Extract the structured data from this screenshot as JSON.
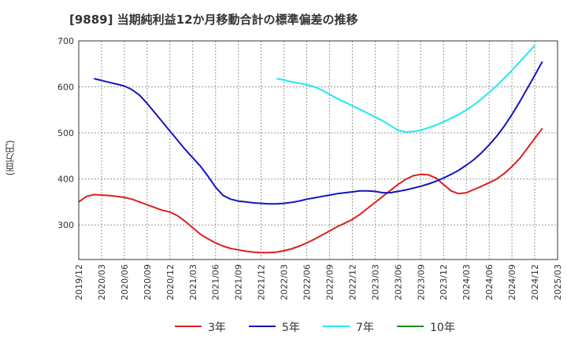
{
  "title": "[9889]  当期純利益12か月移動合計の標準偏差の推移",
  "unit_label": "(百万円)",
  "legend": [
    {
      "label": "3年",
      "color": "#dd1f1f"
    },
    {
      "label": "5年",
      "color": "#1414c0"
    },
    {
      "label": "7年",
      "color": "#20e8f0"
    },
    {
      "label": "10年",
      "color": "#1a8f1a"
    }
  ],
  "chart_data": {
    "type": "line",
    "title": "[9889]  当期純利益12か月移動合計の標準偏差の推移",
    "xlabel": "",
    "ylabel": "(百万円)",
    "ylim": [
      225,
      700
    ],
    "yticks": [
      300,
      400,
      500,
      600,
      700
    ],
    "x_range": [
      "2019-12",
      "2025-03"
    ],
    "xtick_labels": [
      "2019/12",
      "2020/03",
      "2020/06",
      "2020/09",
      "2020/12",
      "2021/03",
      "2021/06",
      "2021/09",
      "2021/12",
      "2022/03",
      "2022/06",
      "2022/09",
      "2022/12",
      "2023/03",
      "2023/06",
      "2023/09",
      "2023/12",
      "2024/03",
      "2024/06",
      "2024/09",
      "2024/12",
      "2025/03"
    ],
    "grid": true,
    "series": [
      {
        "name": "3年",
        "color": "#dd1f1f",
        "points": [
          [
            "2019-12",
            350
          ],
          [
            "2020-01",
            362
          ],
          [
            "2020-02",
            366
          ],
          [
            "2020-03",
            365
          ],
          [
            "2020-04",
            364
          ],
          [
            "2020-05",
            362
          ],
          [
            "2020-06",
            360
          ],
          [
            "2020-07",
            356
          ],
          [
            "2020-08",
            350
          ],
          [
            "2020-09",
            344
          ],
          [
            "2020-10",
            338
          ],
          [
            "2020-11",
            332
          ],
          [
            "2020-12",
            328
          ],
          [
            "2021-01",
            320
          ],
          [
            "2021-02",
            308
          ],
          [
            "2021-03",
            294
          ],
          [
            "2021-04",
            280
          ],
          [
            "2021-05",
            270
          ],
          [
            "2021-06",
            261
          ],
          [
            "2021-07",
            254
          ],
          [
            "2021-08",
            249
          ],
          [
            "2021-09",
            246
          ],
          [
            "2021-10",
            243
          ],
          [
            "2021-11",
            241
          ],
          [
            "2021-12",
            240
          ],
          [
            "2022-01",
            240
          ],
          [
            "2022-02",
            241
          ],
          [
            "2022-03",
            244
          ],
          [
            "2022-04",
            248
          ],
          [
            "2022-05",
            254
          ],
          [
            "2022-06",
            261
          ],
          [
            "2022-07",
            269
          ],
          [
            "2022-08",
            278
          ],
          [
            "2022-09",
            287
          ],
          [
            "2022-10",
            296
          ],
          [
            "2022-11",
            304
          ],
          [
            "2022-12",
            312
          ],
          [
            "2023-01",
            323
          ],
          [
            "2023-02",
            336
          ],
          [
            "2023-03",
            349
          ],
          [
            "2023-04",
            362
          ],
          [
            "2023-05",
            375
          ],
          [
            "2023-06",
            388
          ],
          [
            "2023-07",
            399
          ],
          [
            "2023-08",
            407
          ],
          [
            "2023-09",
            410
          ],
          [
            "2023-10",
            409
          ],
          [
            "2023-11",
            402
          ],
          [
            "2023-12",
            388
          ],
          [
            "2024-01",
            374
          ],
          [
            "2024-02",
            368
          ],
          [
            "2024-03",
            370
          ],
          [
            "2024-04",
            377
          ],
          [
            "2024-05",
            384
          ],
          [
            "2024-06",
            392
          ],
          [
            "2024-07",
            400
          ],
          [
            "2024-08",
            412
          ],
          [
            "2024-09",
            427
          ],
          [
            "2024-10",
            444
          ],
          [
            "2024-11",
            466
          ],
          [
            "2024-12",
            488
          ],
          [
            "2025-01",
            510
          ]
        ]
      },
      {
        "name": "5年",
        "color": "#1414c0",
        "points": [
          [
            "2020-02",
            618
          ],
          [
            "2020-03",
            614
          ],
          [
            "2020-04",
            610
          ],
          [
            "2020-05",
            606
          ],
          [
            "2020-06",
            602
          ],
          [
            "2020-07",
            594
          ],
          [
            "2020-08",
            582
          ],
          [
            "2020-09",
            564
          ],
          [
            "2020-10",
            544
          ],
          [
            "2020-11",
            524
          ],
          [
            "2020-12",
            504
          ],
          [
            "2021-01",
            484
          ],
          [
            "2021-02",
            464
          ],
          [
            "2021-03",
            446
          ],
          [
            "2021-04",
            428
          ],
          [
            "2021-05",
            406
          ],
          [
            "2021-06",
            382
          ],
          [
            "2021-07",
            364
          ],
          [
            "2021-08",
            356
          ],
          [
            "2021-09",
            352
          ],
          [
            "2021-10",
            350
          ],
          [
            "2021-11",
            348
          ],
          [
            "2021-12",
            347
          ],
          [
            "2022-01",
            346
          ],
          [
            "2022-02",
            346
          ],
          [
            "2022-03",
            347
          ],
          [
            "2022-04",
            349
          ],
          [
            "2022-05",
            352
          ],
          [
            "2022-06",
            356
          ],
          [
            "2022-07",
            359
          ],
          [
            "2022-08",
            362
          ],
          [
            "2022-09",
            365
          ],
          [
            "2022-10",
            368
          ],
          [
            "2022-11",
            370
          ],
          [
            "2022-12",
            372
          ],
          [
            "2023-01",
            374
          ],
          [
            "2023-02",
            374
          ],
          [
            "2023-03",
            373
          ],
          [
            "2023-04",
            370
          ],
          [
            "2023-05",
            370
          ],
          [
            "2023-06",
            373
          ],
          [
            "2023-07",
            376
          ],
          [
            "2023-08",
            380
          ],
          [
            "2023-09",
            384
          ],
          [
            "2023-10",
            389
          ],
          [
            "2023-11",
            395
          ],
          [
            "2023-12",
            402
          ],
          [
            "2024-01",
            410
          ],
          [
            "2024-02",
            419
          ],
          [
            "2024-03",
            430
          ],
          [
            "2024-04",
            442
          ],
          [
            "2024-05",
            457
          ],
          [
            "2024-06",
            474
          ],
          [
            "2024-07",
            493
          ],
          [
            "2024-08",
            515
          ],
          [
            "2024-09",
            540
          ],
          [
            "2024-10",
            567
          ],
          [
            "2024-11",
            596
          ],
          [
            "2024-12",
            625
          ],
          [
            "2025-01",
            655
          ]
        ]
      },
      {
        "name": "7年",
        "color": "#20e8f0",
        "points": [
          [
            "2022-02",
            618
          ],
          [
            "2022-03",
            615
          ],
          [
            "2022-04",
            611
          ],
          [
            "2022-05",
            608
          ],
          [
            "2022-06",
            605
          ],
          [
            "2022-07",
            600
          ],
          [
            "2022-08",
            593
          ],
          [
            "2022-09",
            584
          ],
          [
            "2022-10",
            575
          ],
          [
            "2022-11",
            567
          ],
          [
            "2022-12",
            559
          ],
          [
            "2023-01",
            551
          ],
          [
            "2023-02",
            543
          ],
          [
            "2023-03",
            535
          ],
          [
            "2023-04",
            526
          ],
          [
            "2023-05",
            516
          ],
          [
            "2023-06",
            506
          ],
          [
            "2023-07",
            502
          ],
          [
            "2023-08",
            503
          ],
          [
            "2023-09",
            506
          ],
          [
            "2023-10",
            511
          ],
          [
            "2023-11",
            517
          ],
          [
            "2023-12",
            524
          ],
          [
            "2024-01",
            532
          ],
          [
            "2024-02",
            540
          ],
          [
            "2024-03",
            550
          ],
          [
            "2024-04",
            561
          ],
          [
            "2024-05",
            574
          ],
          [
            "2024-06",
            588
          ],
          [
            "2024-07",
            603
          ],
          [
            "2024-08",
            619
          ],
          [
            "2024-09",
            636
          ],
          [
            "2024-10",
            654
          ],
          [
            "2024-11",
            672
          ],
          [
            "2024-12",
            690
          ]
        ]
      },
      {
        "name": "10年",
        "color": "#1a8f1a",
        "points": []
      }
    ]
  }
}
